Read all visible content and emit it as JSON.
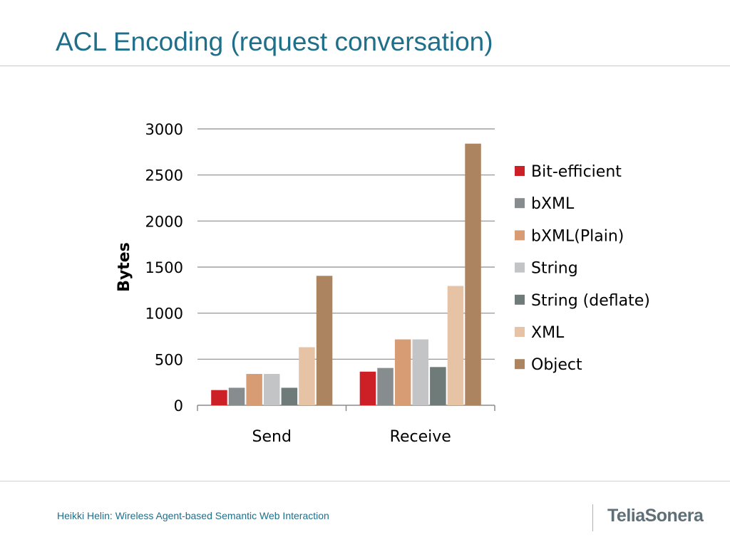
{
  "slide": {
    "title": "ACL Encoding (request conversation)",
    "footer": "Heikki Helin: Wireless Agent-based Semantic Web Interaction",
    "logo": "TeliaSonera",
    "title_color": "#1f6f8b"
  },
  "chart_data": {
    "type": "bar",
    "title": "",
    "xlabel": "",
    "ylabel": "Bytes",
    "ylim": [
      0,
      3000
    ],
    "yticks": [
      0,
      500,
      1000,
      1500,
      2000,
      2500,
      3000
    ],
    "grid": true,
    "legend_position": "right",
    "categories": [
      "Send",
      "Receive"
    ],
    "series": [
      {
        "name": "Bit-efficient",
        "color": "#cc1f26",
        "values": [
          165,
          365
        ]
      },
      {
        "name": "bXML",
        "color": "#878c8e",
        "values": [
          190,
          405
        ]
      },
      {
        "name": "bXML(Plain)",
        "color": "#d79c73",
        "values": [
          340,
          715
        ]
      },
      {
        "name": "String",
        "color": "#c2c4c5",
        "values": [
          340,
          715
        ]
      },
      {
        "name": "String (deflate)",
        "color": "#6e7b79",
        "values": [
          190,
          415
        ]
      },
      {
        "name": "XML",
        "color": "#e7c3a5",
        "values": [
          630,
          1295
        ]
      },
      {
        "name": "Object",
        "color": "#ad8460",
        "values": [
          1405,
          2840
        ]
      }
    ]
  }
}
